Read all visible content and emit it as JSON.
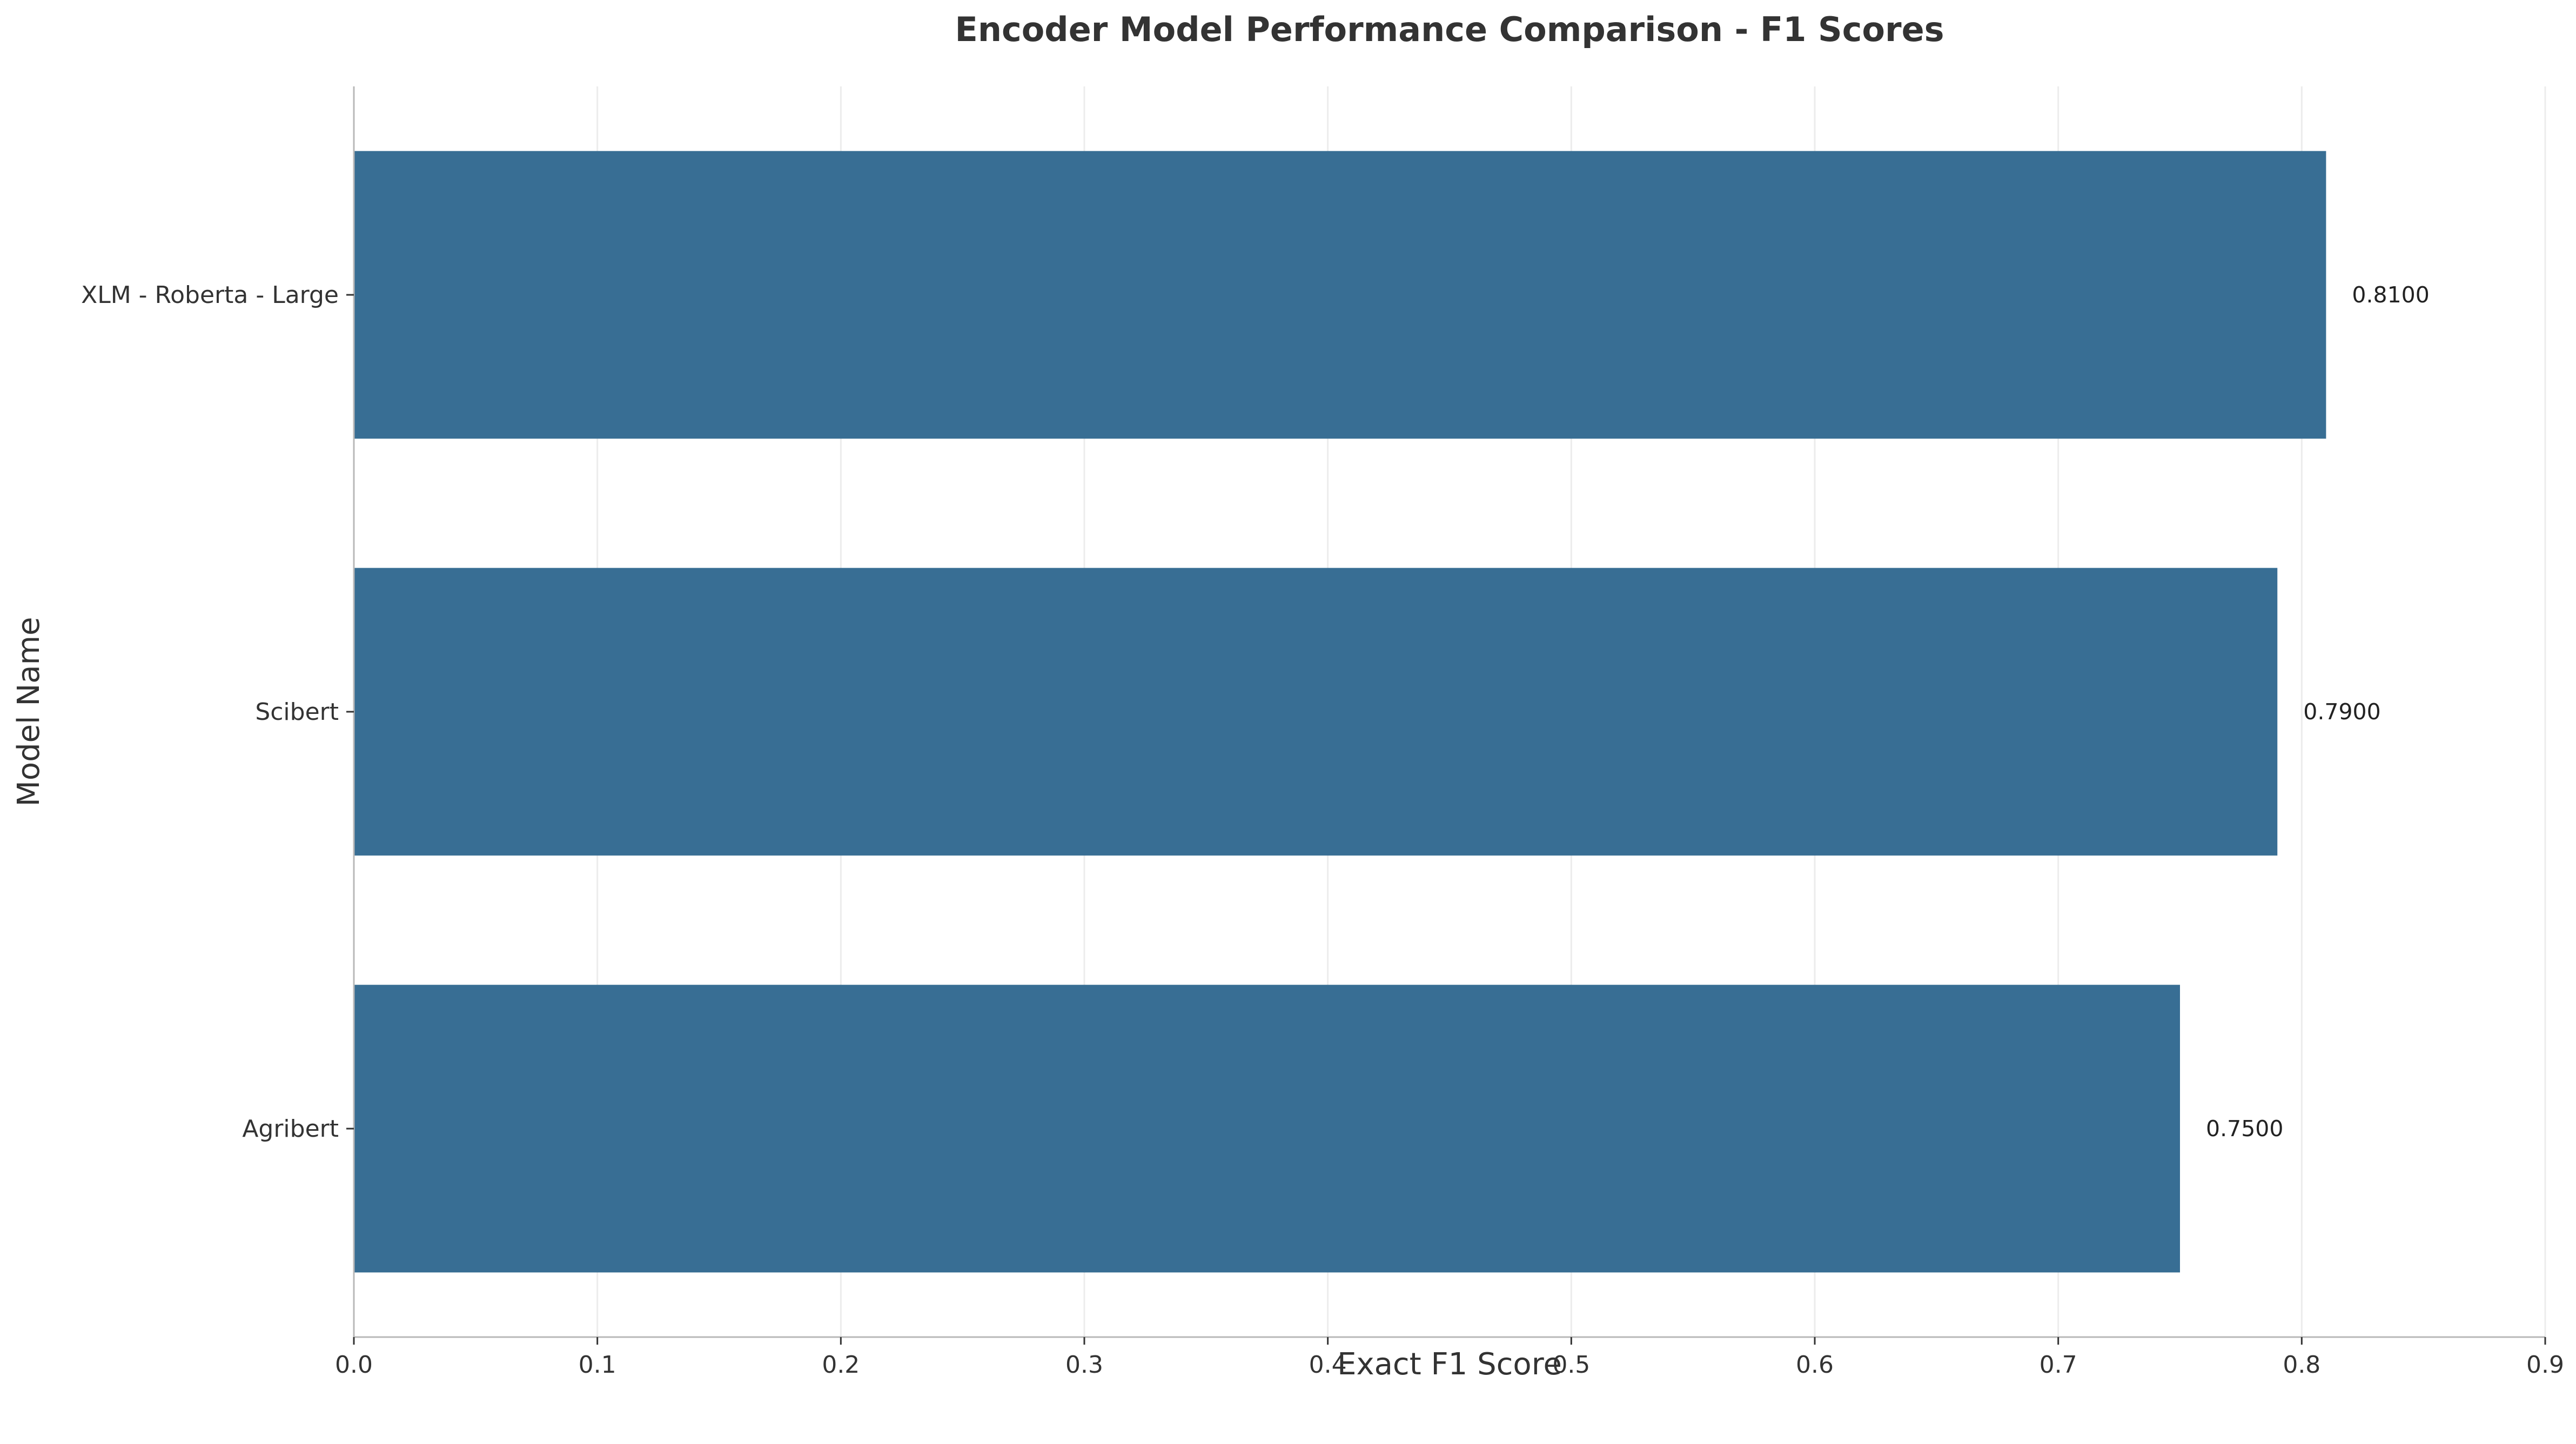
{
  "chart_data": {
    "type": "bar",
    "orientation": "horizontal",
    "title": "Encoder Model Performance Comparison - F1 Scores",
    "xlabel": "Exact F1 Score",
    "ylabel": "Model Name",
    "categories": [
      "XLM - Roberta - Large",
      "Scibert",
      "Agribert"
    ],
    "values": [
      0.81,
      0.79,
      0.75
    ],
    "value_labels": [
      "0.8100",
      "0.7900",
      "0.7500"
    ],
    "xlim": [
      0,
      0.9
    ],
    "xticks": [
      0.0,
      0.1,
      0.2,
      0.3,
      0.4,
      0.5,
      0.6,
      0.7,
      0.8,
      0.9
    ],
    "xtick_labels": [
      "0.0",
      "0.1",
      "0.2",
      "0.3",
      "0.4",
      "0.5",
      "0.6",
      "0.7",
      "0.8",
      "0.9"
    ],
    "grid": "vertical",
    "legend": "none",
    "colors": {
      "bar": "#386e94",
      "grid": "#ececec",
      "axis": "#b8b8b8",
      "text": "#333333"
    }
  }
}
